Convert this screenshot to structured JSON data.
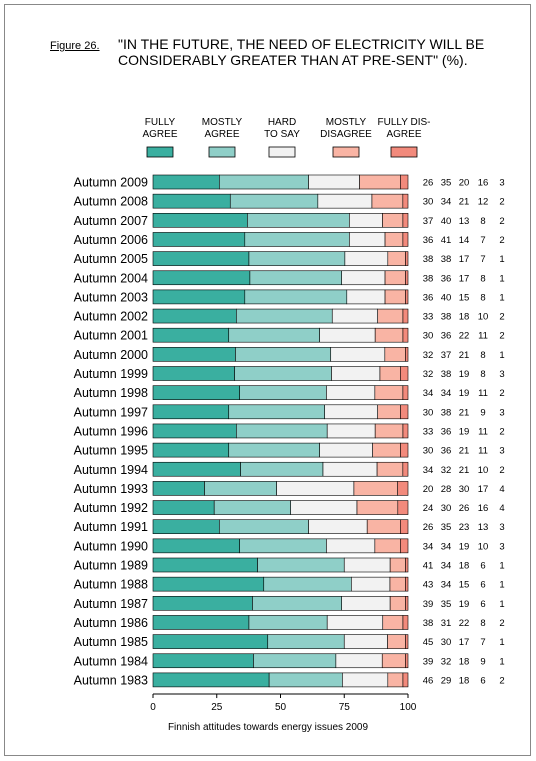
{
  "figure_label": "Figure 26.",
  "title": "\"IN THE FUTURE, THE NEED OF ELECTRICITY WILL BE CONSIDERABLY GREATER THAN AT PRE-SENT\" (%).",
  "footer": "Finnish attitudes towards energy issues 2009",
  "colors": {
    "fully_agree": "#3aafa0",
    "mostly_agree": "#8fcfc8",
    "hard_to_say": "#f2f2f2",
    "mostly_disagree": "#f9b4a4",
    "fully_disagree": "#f28a7c"
  },
  "chart_data": {
    "type": "bar",
    "orientation": "horizontal-stacked-100",
    "xlim": [
      0,
      100
    ],
    "xticks": [
      "0",
      "25",
      "50",
      "75",
      "100"
    ],
    "legend_placement": "top",
    "series": [
      {
        "name": "FULLY AGREE",
        "label_lines": [
          "FULLY",
          "AGREE"
        ]
      },
      {
        "name": "MOSTLY AGREE",
        "label_lines": [
          "MOSTLY",
          "AGREE"
        ]
      },
      {
        "name": "HARD TO SAY",
        "label_lines": [
          "HARD",
          "TO SAY"
        ]
      },
      {
        "name": "MOSTLY DISAGREE",
        "label_lines": [
          "MOSTLY",
          "DISAGREE"
        ]
      },
      {
        "name": "FULLY DIS-AGREE",
        "label_lines": [
          "FULLY DIS-",
          "AGREE"
        ]
      }
    ],
    "categories": [
      "Autumn 2009",
      "Autumn 2008",
      "Autumn 2007",
      "Autumn 2006",
      "Autumn 2005",
      "Autumn 2004",
      "Autumn 2003",
      "Autumn 2002",
      "Autumn 2001",
      "Autumn 2000",
      "Autumn 1999",
      "Autumn 1998",
      "Autumn 1997",
      "Autumn 1996",
      "Autumn 1995",
      "Autumn 1994",
      "Autumn 1993",
      "Autumn 1992",
      "Autumn 1991",
      "Autumn 1990",
      "Autumn 1989",
      "Autumn 1988",
      "Autumn 1987",
      "Autumn 1986",
      "Autumn 1985",
      "Autumn 1984",
      "Autumn 1983"
    ],
    "values": [
      [
        26,
        35,
        20,
        16,
        3
      ],
      [
        30,
        34,
        21,
        12,
        2
      ],
      [
        37,
        40,
        13,
        8,
        2
      ],
      [
        36,
        41,
        14,
        7,
        2
      ],
      [
        38,
        38,
        17,
        7,
        1
      ],
      [
        38,
        36,
        17,
        8,
        1
      ],
      [
        36,
        40,
        15,
        8,
        1
      ],
      [
        33,
        38,
        18,
        10,
        2
      ],
      [
        30,
        36,
        22,
        11,
        2
      ],
      [
        32,
        37,
        21,
        8,
        1
      ],
      [
        32,
        38,
        19,
        8,
        3
      ],
      [
        34,
        34,
        19,
        11,
        2
      ],
      [
        30,
        38,
        21,
        9,
        3
      ],
      [
        33,
        36,
        19,
        11,
        2
      ],
      [
        30,
        36,
        21,
        11,
        3
      ],
      [
        34,
        32,
        21,
        10,
        2
      ],
      [
        20,
        28,
        30,
        17,
        4
      ],
      [
        24,
        30,
        26,
        16,
        4
      ],
      [
        26,
        35,
        23,
        13,
        3
      ],
      [
        34,
        34,
        19,
        10,
        3
      ],
      [
        41,
        34,
        18,
        6,
        1
      ],
      [
        43,
        34,
        15,
        6,
        1
      ],
      [
        39,
        35,
        19,
        6,
        1
      ],
      [
        38,
        31,
        22,
        8,
        2
      ],
      [
        45,
        30,
        17,
        7,
        1
      ],
      [
        39,
        32,
        18,
        9,
        1
      ],
      [
        46,
        29,
        18,
        6,
        2
      ]
    ]
  }
}
